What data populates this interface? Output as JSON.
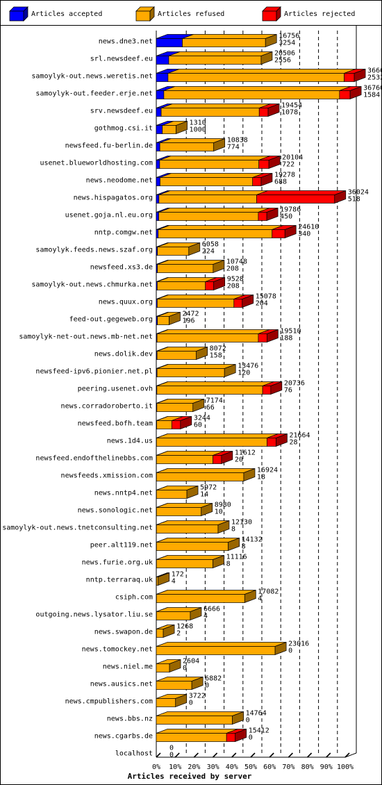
{
  "chart_data": {
    "type": "bar",
    "orientation": "horizontal",
    "stacked": true,
    "xlabel": "Articles received by server",
    "xlim": [
      0,
      100
    ],
    "x_unit": "%",
    "x_ticks": [
      "0%",
      "10%",
      "20%",
      "30%",
      "40%",
      "50%",
      "60%",
      "70%",
      "80%",
      "90%",
      "100%"
    ],
    "grid": true,
    "legend_position": "top",
    "series": [
      {
        "name": "Articles accepted",
        "color": "#0000ff"
      },
      {
        "name": "Articles refused",
        "color": "#ffaa00"
      },
      {
        "name": "Articles rejected",
        "color": "#ff0000"
      }
    ],
    "categories": [
      "news.dne3.net",
      "srl.newsdeef.eu",
      "samoylyk-out.news.weretis.net",
      "samoylyk-out.feeder.erje.net",
      "srv.newsdeef.eu",
      "gothmog.csi.it",
      "newsfeed.fu-berlin.de",
      "usenet.blueworldhosting.com",
      "news.neodome.net",
      "news.hispagatos.org",
      "usenet.goja.nl.eu.org",
      "nntp.comgw.net",
      "samoylyk.feeds.news.szaf.org",
      "newsfeed.xs3.de",
      "samoylyk-out.news.chmurka.net",
      "news.quux.org",
      "feed-out.gegeweb.org",
      "samoylyk-net-out.news.mb-net.net",
      "news.dolik.dev",
      "newsfeed-ipv6.pionier.net.pl",
      "peering.usenet.ovh",
      "news.corradoroberto.it",
      "newsfeed.bofh.team",
      "news.1d4.us",
      "newsfeed.endofthelinebbs.com",
      "newsfeeds.xmission.com",
      "news.nntp4.net",
      "news.sonologic.net",
      "samoylyk-out.news.tnetconsulting.net",
      "peer.alt119.net",
      "news.furie.org.uk",
      "nntp.terraraq.uk",
      "csiph.com",
      "outgoing.news.lysator.liu.se",
      "news.swapon.de",
      "news.tomockey.net",
      "news.niel.me",
      "news.ausics.net",
      "news.cmpublishers.com",
      "news.bbs.nz",
      "news.cgarbs.de",
      "localhost"
    ],
    "received": [
      16756,
      20506,
      36662,
      36760,
      19454,
      1310,
      10838,
      20104,
      19278,
      36024,
      19786,
      24610,
      6058,
      10748,
      9528,
      15078,
      2472,
      19510,
      8072,
      13476,
      20736,
      7174,
      3244,
      21664,
      11612,
      16924,
      5972,
      8980,
      12130,
      14132,
      11116,
      172,
      17082,
      6666,
      1268,
      23016,
      2604,
      6882,
      3722,
      14764,
      15412,
      0
    ],
    "accepted": [
      3254,
      2556,
      2532,
      1584,
      1078,
      1000,
      774,
      722,
      688,
      518,
      450,
      340,
      224,
      208,
      208,
      204,
      196,
      188,
      158,
      120,
      76,
      66,
      60,
      28,
      20,
      18,
      14,
      10,
      8,
      8,
      8,
      4,
      4,
      4,
      2,
      0,
      0,
      0,
      0,
      0,
      0,
      0
    ],
    "accepted_pct": [
      13.8,
      6.6,
      6.2,
      4.0,
      2.6,
      3.2,
      1.9,
      1.8,
      2.0,
      1.4,
      1.3,
      1.0,
      0.6,
      0.6,
      0.5,
      0.5,
      0.6,
      0.4,
      0.4,
      0.4,
      0.3,
      0.3,
      0.2,
      0.1,
      0.1,
      0.1,
      0.1,
      0.1,
      0.1,
      0.1,
      0.1,
      0.1,
      0.1,
      0.1,
      0.1,
      0,
      0,
      0,
      0,
      0,
      0,
      0
    ],
    "refused_pct": [
      44.0,
      48.9,
      93.3,
      93.0,
      51.9,
      7.3,
      28.5,
      52.5,
      49.0,
      51.7,
      52.7,
      60.3,
      16.6,
      29.5,
      25.5,
      40.6,
      6.2,
      53.6,
      20.8,
      35.7,
      56.0,
      19.1,
      8.0,
      58.5,
      29.9,
      46.2,
      16.1,
      23.7,
      32.6,
      38.0,
      29.9,
      0.9,
      46.7,
      17.9,
      3.6,
      62.9,
      7.0,
      18.8,
      10.2,
      40.3,
      37.2,
      0
    ],
    "rejected_pct": [
      0.0,
      0.0,
      5.3,
      5.6,
      4.7,
      0.0,
      0.0,
      5.3,
      4.5,
      41.3,
      4.5,
      6.8,
      0.0,
      0.0,
      4.4,
      4.4,
      0.0,
      4.6,
      0.0,
      0.0,
      4.3,
      0.0,
      4.6,
      4.8,
      4.5,
      0.0,
      0.0,
      0.0,
      0.0,
      0.0,
      0.0,
      0.0,
      0.0,
      0.0,
      0.0,
      0.0,
      0.0,
      0.0,
      0.0,
      0.0,
      4.6,
      0
    ]
  }
}
